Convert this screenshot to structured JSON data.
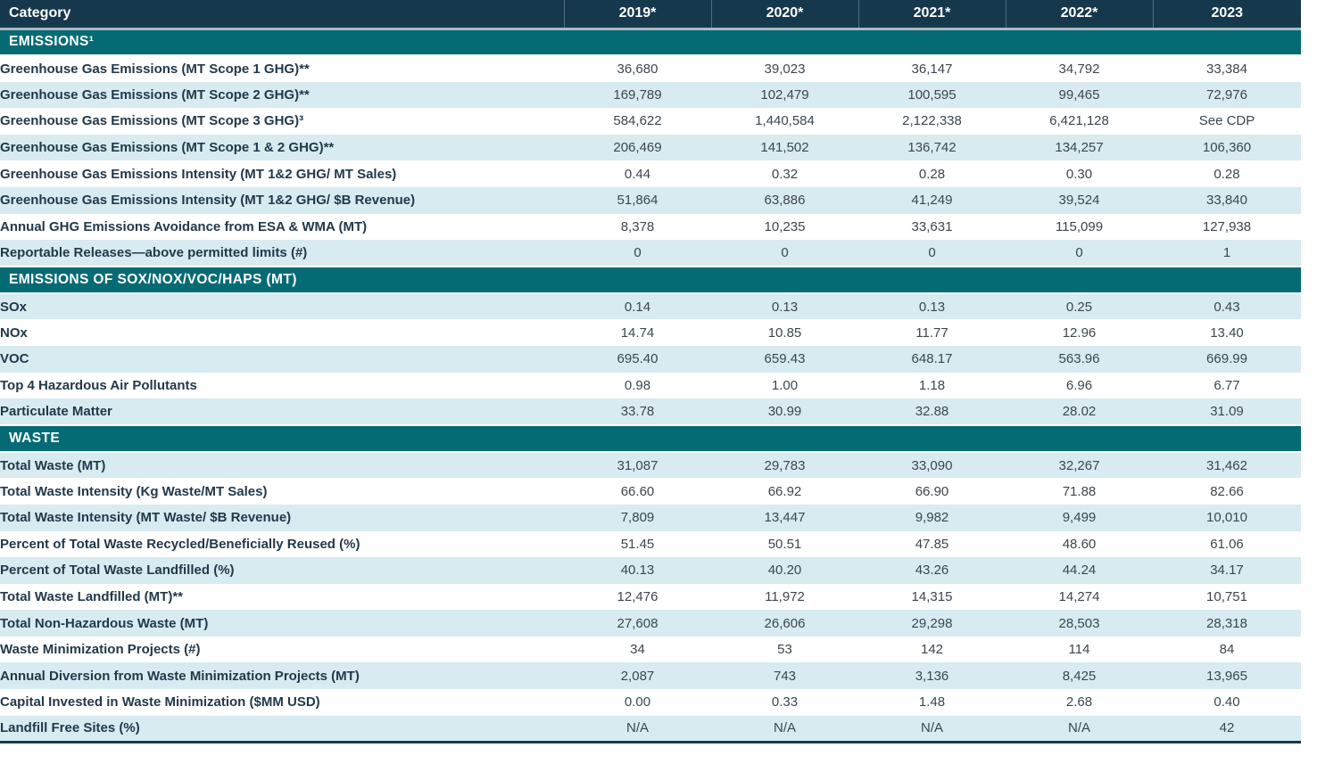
{
  "header": {
    "category_label": "Category",
    "years": [
      "2019*",
      "2020*",
      "2021*",
      "2022*",
      "2023"
    ]
  },
  "sections": [
    {
      "title": "EMISSIONS¹",
      "rows": [
        {
          "label": "Greenhouse Gas Emissions (MT Scope 1 GHG)**",
          "values": [
            "36,680",
            "39,023",
            "36,147",
            "34,792",
            "33,384"
          ],
          "shaded": false
        },
        {
          "label": "Greenhouse Gas Emissions (MT Scope 2 GHG)**",
          "values": [
            "169,789",
            "102,479",
            "100,595",
            "99,465",
            "72,976"
          ],
          "shaded": true
        },
        {
          "label": "Greenhouse Gas Emissions (MT Scope 3 GHG)³",
          "values": [
            "584,622",
            "1,440,584",
            "2,122,338",
            "6,421,128",
            "See CDP"
          ],
          "shaded": false
        },
        {
          "label": "Greenhouse Gas Emissions (MT Scope 1 & 2 GHG)**",
          "values": [
            "206,469",
            "141,502",
            "136,742",
            "134,257",
            "106,360"
          ],
          "shaded": true
        },
        {
          "label": "Greenhouse Gas Emissions Intensity (MT 1&2 GHG/ MT Sales)",
          "values": [
            "0.44",
            "0.32",
            "0.28",
            "0.30",
            "0.28"
          ],
          "shaded": false
        },
        {
          "label": "Greenhouse Gas Emissions Intensity (MT 1&2 GHG/ $B Revenue)",
          "values": [
            "51,864",
            "63,886",
            "41,249",
            "39,524",
            "33,840"
          ],
          "shaded": true
        },
        {
          "label": "Annual GHG Emissions Avoidance from ESA & WMA (MT)",
          "values": [
            "8,378",
            "10,235",
            "33,631",
            "115,099",
            "127,938"
          ],
          "shaded": false
        },
        {
          "label": "Reportable Releases—above permitted limits (#)",
          "values": [
            "0",
            "0",
            "0",
            "0",
            "1"
          ],
          "shaded": true
        }
      ]
    },
    {
      "title": "EMISSIONS OF SOX/NOX/VOC/HAPS (MT)",
      "rows": [
        {
          "label": "SOx",
          "values": [
            "0.14",
            "0.13",
            "0.13",
            "0.25",
            "0.43"
          ],
          "shaded": true
        },
        {
          "label": "NOx",
          "values": [
            "14.74",
            "10.85",
            "11.77",
            "12.96",
            "13.40"
          ],
          "shaded": false
        },
        {
          "label": "VOC",
          "values": [
            "695.40",
            "659.43",
            "648.17",
            "563.96",
            "669.99"
          ],
          "shaded": true
        },
        {
          "label": "Top 4 Hazardous Air Pollutants",
          "values": [
            "0.98",
            "1.00",
            "1.18",
            "6.96",
            "6.77"
          ],
          "shaded": false
        },
        {
          "label": "Particulate Matter",
          "values": [
            "33.78",
            "30.99",
            "32.88",
            "28.02",
            "31.09"
          ],
          "shaded": true
        }
      ]
    },
    {
      "title": "WASTE",
      "rows": [
        {
          "label": "Total Waste (MT)",
          "values": [
            "31,087",
            "29,783",
            "33,090",
            "32,267",
            "31,462"
          ],
          "shaded": true
        },
        {
          "label": "Total Waste Intensity (Kg Waste/MT Sales)",
          "values": [
            "66.60",
            "66.92",
            "66.90",
            "71.88",
            "82.66"
          ],
          "shaded": false
        },
        {
          "label": "Total Waste Intensity (MT Waste/ $B Revenue)",
          "values": [
            "7,809",
            "13,447",
            "9,982",
            "9,499",
            "10,010"
          ],
          "shaded": true
        },
        {
          "label": "Percent of Total Waste Recycled/Beneficially Reused (%)",
          "values": [
            "51.45",
            "50.51",
            "47.85",
            "48.60",
            "61.06"
          ],
          "shaded": false
        },
        {
          "label": "Percent of Total Waste Landfilled (%)",
          "values": [
            "40.13",
            "40.20",
            "43.26",
            "44.24",
            "34.17"
          ],
          "shaded": true
        },
        {
          "label": "Total Waste Landfilled (MT)**",
          "values": [
            "12,476",
            "11,972",
            "14,315",
            "14,274",
            "10,751"
          ],
          "shaded": false
        },
        {
          "label": "Total Non-Hazardous Waste (MT)",
          "values": [
            "27,608",
            "26,606",
            "29,298",
            "28,503",
            "28,318"
          ],
          "shaded": true
        },
        {
          "label": "Waste Minimization Projects (#)",
          "values": [
            "34",
            "53",
            "142",
            "114",
            "84"
          ],
          "shaded": false
        },
        {
          "label": "Annual Diversion from Waste Minimization Projects (MT)",
          "values": [
            "2,087",
            "743",
            "3,136",
            "8,425",
            "13,965"
          ],
          "shaded": true
        },
        {
          "label": "Capital Invested in Waste Minimization ($MM USD)",
          "values": [
            "0.00",
            "0.33",
            "1.48",
            "2.68",
            "0.40"
          ],
          "shaded": false
        },
        {
          "label": "Landfill Free Sites (%)",
          "values": [
            "N/A",
            "N/A",
            "N/A",
            "N/A",
            "42"
          ],
          "shaded": true
        }
      ]
    }
  ],
  "colors": {
    "header_bg": "#16384C",
    "section_bg": "#046B75",
    "shaded_row_bg": "#D7EBF1",
    "header_divider": "#ABB8BF",
    "label_text": "#21394B",
    "value_text": "#3C4650",
    "header_text": "#FFFFFF"
  }
}
